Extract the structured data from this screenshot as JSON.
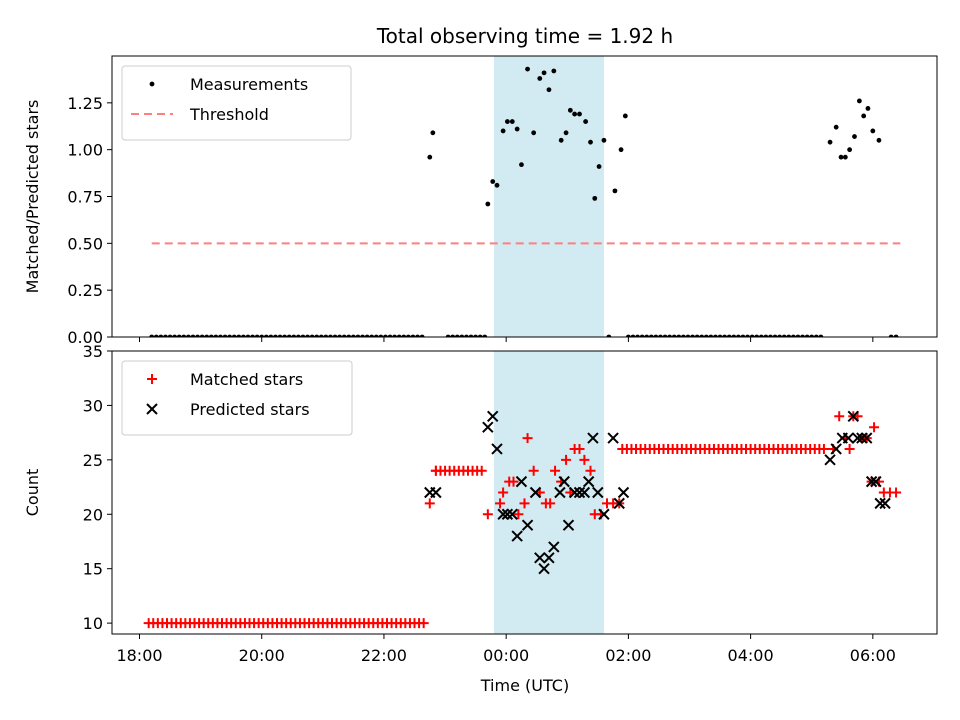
{
  "chart_data": {
    "type": "scatter",
    "title": "Total observing time = 1.92 h",
    "xlabel": "Time (UTC)",
    "x_unit": "hours",
    "x_ticks": [
      {
        "v": 18,
        "label": "18:00"
      },
      {
        "v": 20,
        "label": "20:00"
      },
      {
        "v": 22,
        "label": "22:00"
      },
      {
        "v": 24,
        "label": "00:00"
      },
      {
        "v": 26,
        "label": "02:00"
      },
      {
        "v": 28,
        "label": "04:00"
      },
      {
        "v": 30,
        "label": "06:00"
      }
    ],
    "xlim": [
      17.55,
      31.05
    ],
    "highlight_span": [
      23.8,
      25.6
    ],
    "colors": {
      "highlight": "#add8e6",
      "matched": "#ff0000",
      "predicted": "#000000",
      "ratio": "#000000",
      "threshold": "#ff7f7f"
    },
    "panels": [
      {
        "ylabel": "Matched/Predicted stars",
        "ylim": [
          0,
          1.5
        ],
        "y_ticks": [
          {
            "v": 0,
            "label": "0.00"
          },
          {
            "v": 0.25,
            "label": "0.25"
          },
          {
            "v": 0.5,
            "label": "0.50"
          },
          {
            "v": 0.75,
            "label": "0.75"
          },
          {
            "v": 1.0,
            "label": "1.00"
          },
          {
            "v": 1.25,
            "label": "1.25"
          }
        ],
        "legend_position": "upper left",
        "series": [
          {
            "name": "Measurements",
            "kind": "dot",
            "points": [
              [
                22.75,
                0.96
              ],
              [
                22.8,
                1.09
              ],
              [
                23.7,
                0.71
              ],
              [
                23.78,
                0.83
              ],
              [
                23.85,
                0.81
              ],
              [
                23.95,
                1.1
              ],
              [
                24.02,
                1.15
              ],
              [
                24.1,
                1.15
              ],
              [
                24.18,
                1.11
              ],
              [
                24.25,
                0.92
              ],
              [
                24.35,
                1.43
              ],
              [
                24.45,
                1.09
              ],
              [
                24.55,
                1.38
              ],
              [
                24.62,
                1.41
              ],
              [
                24.7,
                1.32
              ],
              [
                24.78,
                1.42
              ],
              [
                24.9,
                1.05
              ],
              [
                24.98,
                1.09
              ],
              [
                25.05,
                1.21
              ],
              [
                25.12,
                1.19
              ],
              [
                25.2,
                1.19
              ],
              [
                25.3,
                1.15
              ],
              [
                25.38,
                1.04
              ],
              [
                25.45,
                0.74
              ],
              [
                25.52,
                0.91
              ],
              [
                25.6,
                1.05
              ],
              [
                25.68,
                0.0
              ],
              [
                25.78,
                0.78
              ],
              [
                25.88,
                1.0
              ],
              [
                25.95,
                1.18
              ],
              [
                29.3,
                1.04
              ],
              [
                29.4,
                1.12
              ],
              [
                29.48,
                0.96
              ],
              [
                29.55,
                0.96
              ],
              [
                29.62,
                1.0
              ],
              [
                29.7,
                1.07
              ],
              [
                29.78,
                1.26
              ],
              [
                29.85,
                1.18
              ],
              [
                29.92,
                1.22
              ],
              [
                30.0,
                1.1
              ],
              [
                30.1,
                1.05
              ],
              [
                30.3,
                0.0
              ],
              [
                30.38,
                0.0
              ]
            ]
          },
          {
            "name": "Threshold",
            "kind": "dashed-line",
            "points": [
              [
                18.2,
                0.5
              ],
              [
                30.45,
                0.5
              ]
            ]
          }
        ],
        "zero_runs": [
          [
            18.2,
            22.65,
            0.075
          ],
          [
            23.05,
            23.7,
            0.075
          ],
          [
            26.0,
            29.2,
            0.075
          ]
        ]
      },
      {
        "ylabel": "Count",
        "ylim": [
          9,
          35
        ],
        "y_ticks": [
          {
            "v": 10,
            "label": "10"
          },
          {
            "v": 15,
            "label": "15"
          },
          {
            "v": 20,
            "label": "20"
          },
          {
            "v": 25,
            "label": "25"
          },
          {
            "v": 30,
            "label": "30"
          },
          {
            "v": 35,
            "label": "35"
          }
        ],
        "legend_position": "upper left",
        "series": [
          {
            "name": "Matched stars",
            "kind": "plus",
            "points": [
              [
                22.75,
                21
              ],
              [
                22.85,
                24
              ],
              [
                23.7,
                20
              ],
              [
                23.9,
                21
              ],
              [
                23.95,
                22
              ],
              [
                24.05,
                23
              ],
              [
                24.12,
                23
              ],
              [
                24.2,
                20
              ],
              [
                24.3,
                21
              ],
              [
                24.35,
                27
              ],
              [
                24.45,
                24
              ],
              [
                24.55,
                22
              ],
              [
                24.65,
                21
              ],
              [
                24.72,
                21
              ],
              [
                24.8,
                24
              ],
              [
                24.9,
                23
              ],
              [
                24.98,
                25
              ],
              [
                25.05,
                22
              ],
              [
                25.12,
                26
              ],
              [
                25.2,
                26
              ],
              [
                25.28,
                25
              ],
              [
                25.38,
                24
              ],
              [
                25.45,
                20
              ],
              [
                25.55,
                20
              ],
              [
                25.65,
                21
              ],
              [
                25.75,
                21
              ],
              [
                25.85,
                21
              ],
              [
                29.35,
                26
              ],
              [
                29.45,
                29
              ],
              [
                29.55,
                27
              ],
              [
                29.62,
                26
              ],
              [
                29.68,
                29
              ],
              [
                29.75,
                29
              ],
              [
                29.82,
                27
              ],
              [
                29.9,
                27
              ],
              [
                29.98,
                23
              ],
              [
                30.02,
                28
              ],
              [
                30.1,
                23
              ],
              [
                30.18,
                22
              ],
              [
                30.28,
                22
              ],
              [
                30.38,
                22
              ]
            ],
            "runs": [
              [
                18.15,
                22.65,
                10,
                0.075
              ],
              [
                22.85,
                23.65,
                24,
                0.075
              ],
              [
                25.9,
                29.25,
                26,
                0.075
              ]
            ]
          },
          {
            "name": "Predicted stars",
            "kind": "x",
            "points": [
              [
                22.75,
                22
              ],
              [
                22.85,
                22
              ],
              [
                23.7,
                28
              ],
              [
                23.78,
                29
              ],
              [
                23.85,
                26
              ],
              [
                23.95,
                20
              ],
              [
                24.02,
                20
              ],
              [
                24.1,
                20
              ],
              [
                24.18,
                18
              ],
              [
                24.25,
                23
              ],
              [
                24.35,
                19
              ],
              [
                24.48,
                22
              ],
              [
                24.55,
                16
              ],
              [
                24.62,
                15
              ],
              [
                24.7,
                16
              ],
              [
                24.78,
                17
              ],
              [
                24.88,
                22
              ],
              [
                24.95,
                23
              ],
              [
                25.02,
                19
              ],
              [
                25.12,
                22
              ],
              [
                25.2,
                22
              ],
              [
                25.28,
                22
              ],
              [
                25.35,
                23
              ],
              [
                25.42,
                27
              ],
              [
                25.5,
                22
              ],
              [
                25.6,
                20
              ],
              [
                25.75,
                27
              ],
              [
                25.85,
                21
              ],
              [
                25.92,
                22
              ],
              [
                29.3,
                25
              ],
              [
                29.4,
                26
              ],
              [
                29.5,
                27
              ],
              [
                29.6,
                27
              ],
              [
                29.68,
                29
              ],
              [
                29.75,
                27
              ],
              [
                29.82,
                27
              ],
              [
                29.9,
                27
              ],
              [
                29.98,
                23
              ],
              [
                30.05,
                23
              ],
              [
                30.12,
                21
              ],
              [
                30.2,
                21
              ]
            ]
          }
        ]
      }
    ]
  }
}
